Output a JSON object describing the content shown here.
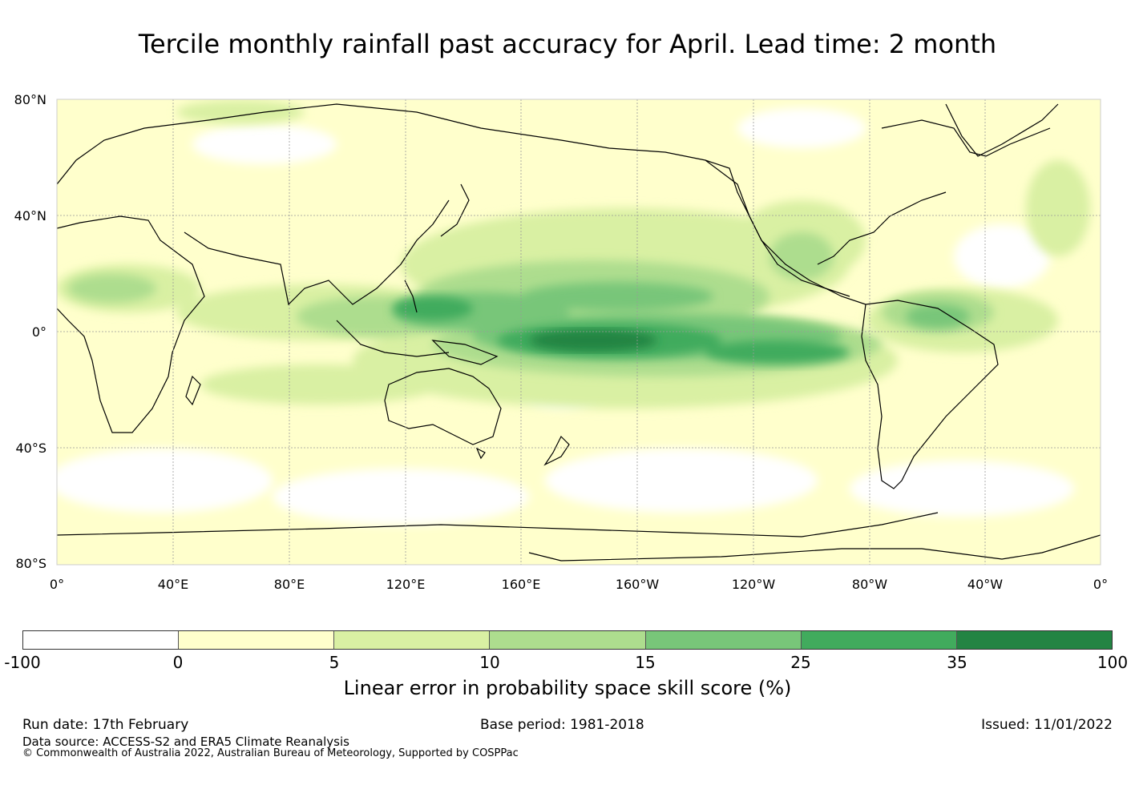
{
  "title": "Tercile monthly rainfall past accuracy for April. Lead time: 2 month",
  "map": {
    "lat_labels": [
      "80°N",
      "40°N",
      "0°",
      "40°S",
      "80°S"
    ],
    "lon_labels": [
      "0°",
      "40°E",
      "80°E",
      "120°E",
      "160°E",
      "160°W",
      "120°W",
      "80°W",
      "40°W",
      "0°"
    ],
    "colors": {
      "land_outline": "#000000",
      "grid": "#999999"
    }
  },
  "colorbar": {
    "bounds": [
      "-100",
      "0",
      "5",
      "10",
      "15",
      "25",
      "35",
      "100"
    ],
    "colors": [
      "#ffffff",
      "#ffffcc",
      "#d9f0a3",
      "#addd8e",
      "#78c679",
      "#41ab5d",
      "#238443"
    ],
    "label": "Linear error in probability space skill score (%)"
  },
  "footer": {
    "run_date": "Run date: 17th February",
    "base_period": "Base period: 1981-2018",
    "issued": "Issued: 11/01/2022",
    "data_source": "Data source: ACCESS-S2 and ERA5 Climate Reanalysis",
    "copyright": "© Commonwealth of Australia 2022, Australian Bureau of Meteorology, Supported by COSPPac"
  }
}
